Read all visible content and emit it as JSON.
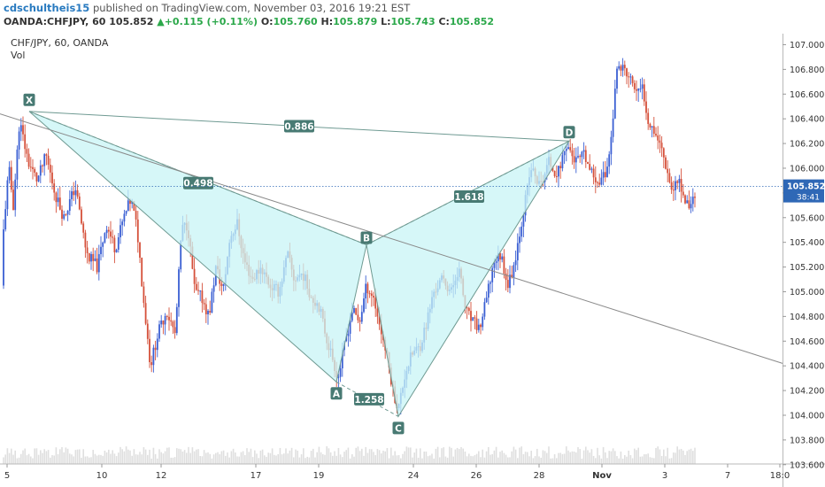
{
  "header": {
    "author": "cdschultheis15",
    "published_text": "published on TradingView.com, November 03, 2016 19:21 EST",
    "symbol_line": "OANDA:CHFJPY, 60",
    "last": "105.852",
    "change_arrow": "▲",
    "change": "+0.115 (+0.11%)",
    "o_label": "O:",
    "o_value": "105.760",
    "h_label": "H:",
    "h_value": "105.879",
    "l_label": "L:",
    "l_value": "105.743",
    "c_label": "C:",
    "c_value": "105.852"
  },
  "chart_data": {
    "type": "candlestick",
    "title": "CHF/JPY, 60, OANDA",
    "indicator_label": "Vol",
    "ylim": [
      103.5,
      107.05
    ],
    "y_ticks": [
      "107.000",
      "106.800",
      "106.600",
      "106.400",
      "106.200",
      "106.000",
      "105.800",
      "105.600",
      "105.400",
      "105.200",
      "105.000",
      "104.800",
      "104.600",
      "104.400",
      "104.200",
      "104.000",
      "103.800",
      "103.600"
    ],
    "x_ticks": [
      "5",
      "10",
      "12",
      "17",
      "19",
      "24",
      "26",
      "28",
      "Nov",
      "3",
      "7",
      "18:0"
    ],
    "last_price": "105.852",
    "countdown": "38:41",
    "path_anchors": [
      [
        0,
        105.05
      ],
      [
        5,
        105.6
      ],
      [
        10,
        106.0
      ],
      [
        15,
        105.7
      ],
      [
        22,
        106.38
      ],
      [
        32,
        106.05
      ],
      [
        42,
        105.9
      ],
      [
        52,
        106.1
      ],
      [
        62,
        105.8
      ],
      [
        72,
        105.6
      ],
      [
        85,
        105.85
      ],
      [
        98,
        105.3
      ],
      [
        110,
        105.2
      ],
      [
        120,
        105.55
      ],
      [
        130,
        105.35
      ],
      [
        140,
        105.6
      ],
      [
        148,
        105.75
      ],
      [
        155,
        105.5
      ],
      [
        162,
        104.95
      ],
      [
        170,
        104.4
      ],
      [
        178,
        104.65
      ],
      [
        188,
        104.85
      ],
      [
        198,
        104.65
      ],
      [
        205,
        105.5
      ],
      [
        212,
        105.55
      ],
      [
        220,
        105.0
      ],
      [
        228,
        104.95
      ],
      [
        236,
        104.8
      ],
      [
        244,
        105.2
      ],
      [
        252,
        105.0
      ],
      [
        260,
        105.45
      ],
      [
        268,
        105.55
      ],
      [
        276,
        105.25
      ],
      [
        285,
        105.1
      ],
      [
        295,
        105.2
      ],
      [
        305,
        105.05
      ],
      [
        315,
        105.0
      ],
      [
        325,
        105.3
      ],
      [
        332,
        105.1
      ],
      [
        342,
        105.15
      ],
      [
        352,
        104.95
      ],
      [
        360,
        104.9
      ],
      [
        368,
        104.65
      ],
      [
        376,
        104.45
      ],
      [
        382,
        104.3
      ],
      [
        390,
        104.6
      ],
      [
        398,
        104.85
      ],
      [
        406,
        104.75
      ],
      [
        414,
        105.05
      ],
      [
        422,
        104.95
      ],
      [
        430,
        104.7
      ],
      [
        438,
        104.45
      ],
      [
        444,
        104.2
      ],
      [
        450,
        104.05
      ],
      [
        458,
        104.35
      ],
      [
        466,
        104.5
      ],
      [
        474,
        104.55
      ],
      [
        482,
        104.75
      ],
      [
        490,
        105.0
      ],
      [
        500,
        105.1
      ],
      [
        510,
        105.0
      ],
      [
        518,
        105.2
      ],
      [
        526,
        104.85
      ],
      [
        534,
        104.75
      ],
      [
        542,
        104.7
      ],
      [
        550,
        104.95
      ],
      [
        558,
        105.25
      ],
      [
        566,
        105.3
      ],
      [
        574,
        105.05
      ],
      [
        580,
        105.2
      ],
      [
        590,
        105.6
      ],
      [
        600,
        106.0
      ],
      [
        610,
        105.85
      ],
      [
        620,
        106.05
      ],
      [
        630,
        105.95
      ],
      [
        640,
        106.2
      ],
      [
        650,
        106.05
      ],
      [
        660,
        106.1
      ],
      [
        668,
        105.95
      ],
      [
        676,
        105.9
      ],
      [
        684,
        105.95
      ],
      [
        690,
        106.2
      ],
      [
        696,
        106.75
      ],
      [
        702,
        106.85
      ],
      [
        708,
        106.75
      ],
      [
        714,
        106.7
      ],
      [
        720,
        106.6
      ],
      [
        726,
        106.65
      ],
      [
        732,
        106.4
      ],
      [
        740,
        106.3
      ],
      [
        748,
        106.15
      ],
      [
        755,
        105.95
      ],
      [
        760,
        105.8
      ],
      [
        766,
        105.95
      ],
      [
        772,
        105.75
      ],
      [
        778,
        105.7
      ],
      [
        783,
        105.75
      ],
      [
        787,
        105.85
      ]
    ],
    "pattern": {
      "points": [
        {
          "label": "X",
          "bar": 33,
          "price": 106.46
        },
        {
          "label": "A",
          "bar": 380,
          "price": 104.27
        },
        {
          "label": "B",
          "bar": 414,
          "price": 105.38
        },
        {
          "label": "C",
          "bar": 450,
          "price": 103.99
        },
        {
          "label": "D",
          "bar": 643,
          "price": 106.22
        }
      ],
      "ratios": [
        {
          "value": "0.498",
          "bar": 224,
          "price": 105.88
        },
        {
          "value": "1.258",
          "bar": 417,
          "price": 104.13
        },
        {
          "value": "1.618",
          "bar": 530,
          "price": 105.77
        },
        {
          "value": "0.886",
          "bar": 338,
          "price": 106.34
        }
      ]
    },
    "trendline": {
      "from": [
        0,
        106.44
      ],
      "to": [
        884,
        104.42
      ]
    }
  },
  "colors": {
    "up": "#3a5fd3",
    "down": "#d5503a",
    "volume": "#c9c9c9",
    "pattern_fill": "#c8f4f6",
    "pattern_line": "#6f9a92",
    "label_bg": "#487a73",
    "price_line": "#2f68b6",
    "price_tag": "#2f68b6"
  }
}
